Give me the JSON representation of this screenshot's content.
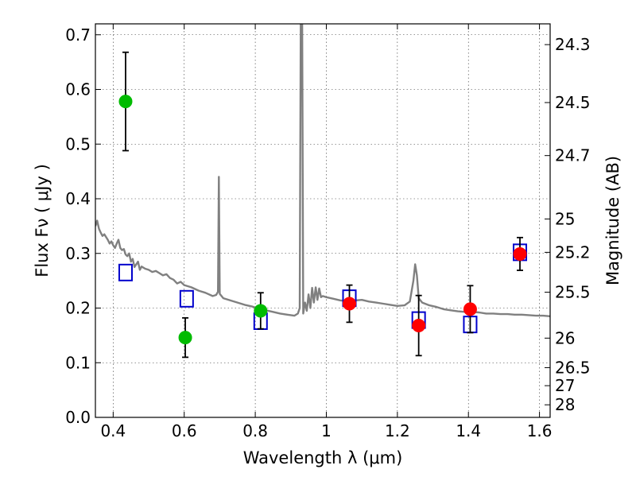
{
  "chart_data": {
    "type": "scatter",
    "xlabel": "Wavelength  λ (μm)",
    "ylabel": "Flux  Fν  ( μJy )",
    "y2label": "Magnitude (AB)",
    "xlim": [
      0.35,
      1.63
    ],
    "ylim": [
      0.0,
      0.72
    ],
    "grid": true,
    "x_ticks": [
      0.4,
      0.6,
      0.8,
      1.0,
      1.2,
      1.4,
      1.6
    ],
    "x_tick_labels": [
      "0.4",
      "0.6",
      "0.8",
      "1",
      "1.2",
      "1.4",
      "1.6"
    ],
    "y_ticks": [
      0.0,
      0.1,
      0.2,
      0.3,
      0.4,
      0.5,
      0.6,
      0.7
    ],
    "y_tick_labels": [
      "0.0",
      "0.1",
      "0.2",
      "0.3",
      "0.4",
      "0.5",
      "0.6",
      "0.7"
    ],
    "magnitude_ticks": [
      {
        "label": "24.3",
        "flux": 0.682
      },
      {
        "label": "24.5",
        "flux": 0.576
      },
      {
        "label": "24.7",
        "flux": 0.479
      },
      {
        "label": "25",
        "flux": 0.363
      },
      {
        "label": "25.2",
        "flux": 0.302
      },
      {
        "label": "25.5",
        "flux": 0.229
      },
      {
        "label": "26",
        "flux": 0.145
      },
      {
        "label": "26.5",
        "flux": 0.091
      },
      {
        "label": "27",
        "flux": 0.058
      },
      {
        "label": "28",
        "flux": 0.023
      }
    ],
    "series": [
      {
        "kind": "line",
        "color": "#808080",
        "points": [
          [
            0.35,
            0.35
          ],
          [
            0.355,
            0.36
          ],
          [
            0.36,
            0.345
          ],
          [
            0.365,
            0.338
          ],
          [
            0.37,
            0.332
          ],
          [
            0.375,
            0.335
          ],
          [
            0.38,
            0.33
          ],
          [
            0.385,
            0.325
          ],
          [
            0.39,
            0.318
          ],
          [
            0.395,
            0.322
          ],
          [
            0.4,
            0.315
          ],
          [
            0.405,
            0.31
          ],
          [
            0.41,
            0.318
          ],
          [
            0.415,
            0.325
          ],
          [
            0.42,
            0.31
          ],
          [
            0.425,
            0.306
          ],
          [
            0.43,
            0.308
          ],
          [
            0.435,
            0.298
          ],
          [
            0.44,
            0.295
          ],
          [
            0.445,
            0.3
          ],
          [
            0.45,
            0.285
          ],
          [
            0.455,
            0.29
          ],
          [
            0.46,
            0.275
          ],
          [
            0.465,
            0.28
          ],
          [
            0.47,
            0.285
          ],
          [
            0.475,
            0.27
          ],
          [
            0.48,
            0.276
          ],
          [
            0.49,
            0.272
          ],
          [
            0.5,
            0.27
          ],
          [
            0.51,
            0.266
          ],
          [
            0.52,
            0.268
          ],
          [
            0.53,
            0.264
          ],
          [
            0.54,
            0.26
          ],
          [
            0.55,
            0.262
          ],
          [
            0.56,
            0.255
          ],
          [
            0.57,
            0.252
          ],
          [
            0.58,
            0.245
          ],
          [
            0.59,
            0.248
          ],
          [
            0.6,
            0.242
          ],
          [
            0.62,
            0.238
          ],
          [
            0.64,
            0.232
          ],
          [
            0.66,
            0.228
          ],
          [
            0.68,
            0.222
          ],
          [
            0.69,
            0.224
          ],
          [
            0.695,
            0.23
          ],
          [
            0.6975,
            0.44
          ],
          [
            0.7,
            0.226
          ],
          [
            0.71,
            0.218
          ],
          [
            0.73,
            0.214
          ],
          [
            0.75,
            0.21
          ],
          [
            0.77,
            0.206
          ],
          [
            0.79,
            0.203
          ],
          [
            0.81,
            0.199
          ],
          [
            0.83,
            0.196
          ],
          [
            0.85,
            0.193
          ],
          [
            0.87,
            0.19
          ],
          [
            0.89,
            0.188
          ],
          [
            0.91,
            0.186
          ],
          [
            0.92,
            0.19
          ],
          [
            0.925,
            0.2
          ],
          [
            0.928,
            0.72
          ],
          [
            0.932,
            0.72
          ],
          [
            0.935,
            0.19
          ],
          [
            0.94,
            0.21
          ],
          [
            0.945,
            0.195
          ],
          [
            0.95,
            0.225
          ],
          [
            0.955,
            0.2
          ],
          [
            0.96,
            0.237
          ],
          [
            0.965,
            0.21
          ],
          [
            0.97,
            0.238
          ],
          [
            0.975,
            0.215
          ],
          [
            0.98,
            0.236
          ],
          [
            0.985,
            0.22
          ],
          [
            0.99,
            0.222
          ],
          [
            1.0,
            0.22
          ],
          [
            1.02,
            0.217
          ],
          [
            1.04,
            0.214
          ],
          [
            1.06,
            0.213
          ],
          [
            1.08,
            0.214
          ],
          [
            1.1,
            0.215
          ],
          [
            1.12,
            0.212
          ],
          [
            1.14,
            0.21
          ],
          [
            1.16,
            0.208
          ],
          [
            1.18,
            0.206
          ],
          [
            1.2,
            0.204
          ],
          [
            1.22,
            0.205
          ],
          [
            1.235,
            0.212
          ],
          [
            1.245,
            0.25
          ],
          [
            1.25,
            0.28
          ],
          [
            1.255,
            0.26
          ],
          [
            1.26,
            0.218
          ],
          [
            1.27,
            0.21
          ],
          [
            1.29,
            0.205
          ],
          [
            1.31,
            0.202
          ],
          [
            1.33,
            0.198
          ],
          [
            1.35,
            0.196
          ],
          [
            1.37,
            0.194
          ],
          [
            1.39,
            0.193
          ],
          [
            1.41,
            0.193
          ],
          [
            1.43,
            0.192
          ],
          [
            1.45,
            0.19
          ],
          [
            1.47,
            0.19
          ],
          [
            1.49,
            0.189
          ],
          [
            1.51,
            0.189
          ],
          [
            1.53,
            0.188
          ],
          [
            1.55,
            0.188
          ],
          [
            1.57,
            0.187
          ],
          [
            1.59,
            0.186
          ],
          [
            1.61,
            0.186
          ],
          [
            1.63,
            0.185
          ]
        ]
      },
      {
        "kind": "model-squares",
        "color": "#0000cc",
        "points": [
          [
            0.435,
            0.265
          ],
          [
            0.607,
            0.217
          ],
          [
            0.815,
            0.176
          ],
          [
            1.065,
            0.218
          ],
          [
            1.26,
            0.178
          ],
          [
            1.405,
            0.17
          ],
          [
            1.545,
            0.302
          ]
        ]
      },
      {
        "kind": "points-errorbars",
        "color": "#00bb00",
        "points": [
          {
            "x": 0.435,
            "y": 0.578,
            "err": 0.09
          },
          {
            "x": 0.603,
            "y": 0.146,
            "err": 0.036
          },
          {
            "x": 0.815,
            "y": 0.195,
            "err": 0.033
          }
        ]
      },
      {
        "kind": "points-errorbars",
        "color": "#ff0000",
        "points": [
          {
            "x": 1.065,
            "y": 0.208,
            "err": 0.034
          },
          {
            "x": 1.26,
            "y": 0.168,
            "err": 0.055
          },
          {
            "x": 1.405,
            "y": 0.198,
            "err": 0.043
          },
          {
            "x": 1.545,
            "y": 0.299,
            "err": 0.03
          }
        ]
      }
    ]
  }
}
